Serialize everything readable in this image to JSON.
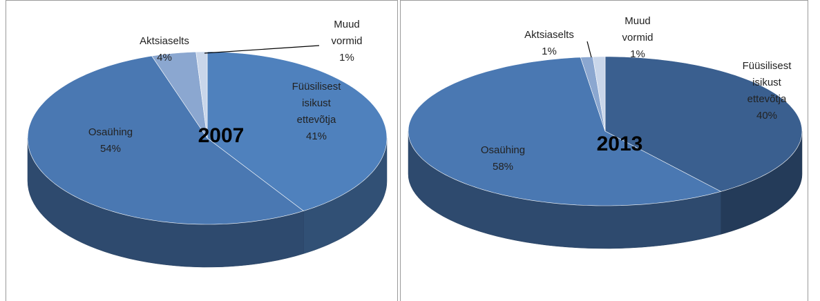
{
  "chart_data": [
    {
      "type": "pie",
      "title": "2007",
      "categories": [
        "Füüsilisest isikust ettevõtja",
        "Osaühing",
        "Aktsiaselts",
        "Muud vormid"
      ],
      "values": [
        41,
        54,
        4,
        1
      ],
      "value_labels": [
        "41%",
        "54%",
        "4%",
        "1%"
      ],
      "colors": [
        "#4f81bd",
        "#4a78b2",
        "#8ba7d0",
        "#c9d6ea"
      ]
    },
    {
      "type": "pie",
      "title": "2013",
      "categories": [
        "Füüsilisest isikust ettevõtja",
        "Osaühing",
        "Aktsiaselts",
        "Muud vormid"
      ],
      "values": [
        40,
        58,
        1,
        1
      ],
      "value_labels": [
        "40%",
        "58%",
        "1%",
        "1%"
      ],
      "colors": [
        "#3a5f8f",
        "#4a78b2",
        "#8ba7d0",
        "#c9d6ea"
      ]
    }
  ]
}
